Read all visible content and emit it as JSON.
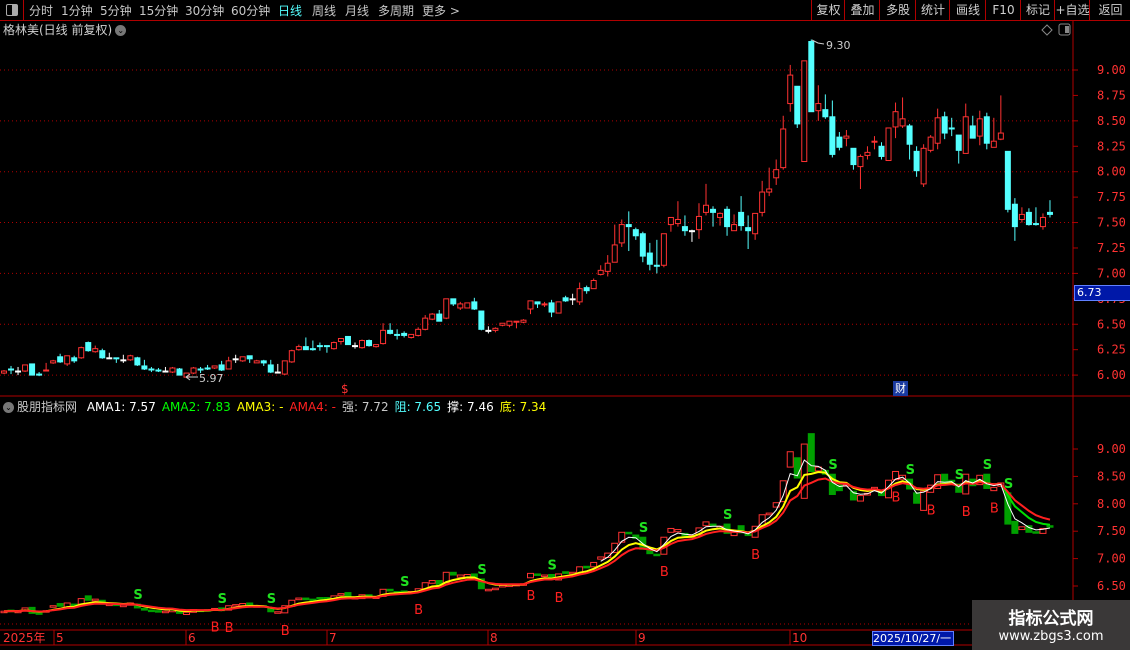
{
  "toolbar": {
    "periods": [
      "分时",
      "1分钟",
      "5分钟",
      "15分钟",
      "30分钟",
      "60分钟",
      "日线",
      "周线",
      "月线",
      "多周期",
      "更多 >"
    ],
    "active_period": "日线",
    "buttons": [
      "复权",
      "叠加",
      "多股",
      "统计",
      "画线",
      "F10",
      "标记",
      "+自选",
      "返回"
    ]
  },
  "chart_title": "格林美(日线 前复权)",
  "main_axis": {
    "ticks": [
      "9.00",
      "8.75",
      "8.50",
      "8.25",
      "8.00",
      "7.75",
      "7.50",
      "7.25",
      "7.00",
      "6.75",
      "6.50",
      "6.25",
      "6.00"
    ]
  },
  "annotations": {
    "high_label": "9.30",
    "low_label": "5.97",
    "current_price": "6.73",
    "dollar_marker": "$",
    "cai_marker": "财"
  },
  "indicator": {
    "name": "股朋指标网",
    "items": [
      {
        "label": "AMA1: 7.57",
        "color": "#ffffff"
      },
      {
        "label": "AMA2: 7.83",
        "color": "#00ff00"
      },
      {
        "label": "AMA3: -",
        "color": "#ffff00"
      },
      {
        "label": "AMA4: -",
        "color": "#ff2020"
      },
      {
        "label": "强: 7.72",
        "color": "#c8c8c8"
      },
      {
        "label": "阻: 7.65",
        "color": "#54ffff"
      },
      {
        "label": "撑: 7.46",
        "color": "#ffffff"
      },
      {
        "label": "底: 7.34",
        "color": "#ffff00"
      }
    ],
    "axis_ticks": [
      "9.00",
      "8.50",
      "8.00",
      "7.50",
      "7.00",
      "6.50"
    ],
    "signals": {
      "S": [
        19,
        31,
        38,
        57,
        68,
        78,
        91,
        103,
        118,
        129,
        136,
        140,
        143
      ],
      "B": [
        30,
        32,
        40,
        59,
        75,
        79,
        94,
        107,
        127,
        132,
        137,
        141
      ]
    }
  },
  "date_axis": {
    "year": "2025年",
    "months": [
      "5",
      "6",
      "7",
      "8",
      "9",
      "10"
    ],
    "selected_date": "2025/10/27/一"
  },
  "watermark": {
    "line1": "指标公式网",
    "line2": "www.zbgs3.com"
  },
  "colors": {
    "up": "#ff3232",
    "down": "#54ffff",
    "flat": "#ffffff",
    "grid": "#b00000",
    "lower_down": "#00a000"
  },
  "candles_ohlc": [
    [
      6.02,
      6.05,
      6.01,
      6.04
    ],
    [
      6.06,
      6.09,
      6.01,
      6.05
    ],
    [
      6.04,
      6.08,
      6.0,
      6.04
    ],
    [
      6.04,
      6.1,
      6.03,
      6.1
    ],
    [
      6.11,
      6.11,
      6.0,
      6.0
    ],
    [
      6.01,
      6.03,
      5.99,
      6.0
    ],
    [
      6.04,
      6.12,
      6.04,
      6.05
    ],
    [
      6.12,
      6.15,
      6.11,
      6.14
    ],
    [
      6.18,
      6.21,
      6.12,
      6.13
    ],
    [
      6.11,
      6.19,
      6.09,
      6.19
    ],
    [
      6.17,
      6.19,
      6.12,
      6.14
    ],
    [
      6.17,
      6.28,
      6.16,
      6.27
    ],
    [
      6.32,
      6.33,
      6.23,
      6.24
    ],
    [
      6.23,
      6.29,
      6.22,
      6.26
    ],
    [
      6.24,
      6.26,
      6.16,
      6.17
    ],
    [
      6.17,
      6.22,
      6.16,
      6.17
    ],
    [
      6.17,
      6.17,
      6.12,
      6.16
    ],
    [
      6.15,
      6.2,
      6.12,
      6.15
    ],
    [
      6.15,
      6.2,
      6.14,
      6.19
    ],
    [
      6.17,
      6.18,
      6.09,
      6.1
    ],
    [
      6.09,
      6.15,
      6.05,
      6.06
    ],
    [
      6.06,
      6.08,
      6.03,
      6.05
    ],
    [
      6.05,
      6.07,
      6.03,
      6.04
    ],
    [
      6.04,
      6.08,
      6.04,
      6.04
    ],
    [
      6.03,
      6.08,
      6.02,
      6.07
    ],
    [
      6.06,
      6.07,
      6.0,
      6.0
    ],
    [
      5.98,
      6.02,
      5.97,
      6.02
    ],
    [
      6.02,
      6.08,
      6.01,
      6.07
    ],
    [
      6.06,
      6.08,
      6.02,
      6.05
    ],
    [
      6.07,
      6.1,
      6.05,
      6.06
    ],
    [
      6.07,
      6.09,
      6.06,
      6.09
    ],
    [
      6.1,
      6.14,
      6.04,
      6.05
    ],
    [
      6.06,
      6.18,
      6.06,
      6.14
    ],
    [
      6.16,
      6.2,
      6.12,
      6.16
    ],
    [
      6.14,
      6.18,
      6.13,
      6.18
    ],
    [
      6.19,
      6.19,
      6.12,
      6.16
    ],
    [
      6.12,
      6.15,
      6.12,
      6.14
    ],
    [
      6.14,
      6.15,
      6.09,
      6.12
    ],
    [
      6.1,
      6.15,
      6.02,
      6.03
    ],
    [
      6.03,
      6.11,
      6.02,
      6.03
    ],
    [
      6.01,
      6.14,
      6.0,
      6.14
    ],
    [
      6.13,
      6.25,
      6.12,
      6.24
    ],
    [
      6.25,
      6.3,
      6.24,
      6.28
    ],
    [
      6.28,
      6.37,
      6.25,
      6.25
    ],
    [
      6.26,
      6.34,
      6.24,
      6.25
    ],
    [
      6.29,
      6.32,
      6.24,
      6.28
    ],
    [
      6.29,
      6.29,
      6.22,
      6.28
    ],
    [
      6.26,
      6.33,
      6.25,
      6.32
    ],
    [
      6.33,
      6.36,
      6.3,
      6.36
    ],
    [
      6.38,
      6.38,
      6.3,
      6.3
    ],
    [
      6.29,
      6.32,
      6.26,
      6.29
    ],
    [
      6.27,
      6.35,
      6.26,
      6.34
    ],
    [
      6.34,
      6.35,
      6.28,
      6.29
    ],
    [
      6.28,
      6.3,
      6.27,
      6.3
    ],
    [
      6.31,
      6.51,
      6.3,
      6.44
    ],
    [
      6.44,
      6.51,
      6.4,
      6.41
    ],
    [
      6.4,
      6.45,
      6.35,
      6.39
    ],
    [
      6.41,
      6.43,
      6.37,
      6.39
    ],
    [
      6.37,
      6.4,
      6.36,
      6.4
    ],
    [
      6.39,
      6.47,
      6.38,
      6.45
    ],
    [
      6.45,
      6.59,
      6.44,
      6.56
    ],
    [
      6.55,
      6.61,
      6.54,
      6.6
    ],
    [
      6.6,
      6.64,
      6.53,
      6.53
    ],
    [
      6.56,
      6.75,
      6.55,
      6.75
    ],
    [
      6.75,
      6.75,
      6.68,
      6.7
    ],
    [
      6.66,
      6.72,
      6.64,
      6.7
    ],
    [
      6.66,
      6.71,
      6.66,
      6.71
    ],
    [
      6.72,
      6.76,
      6.64,
      6.65
    ],
    [
      6.63,
      6.63,
      6.44,
      6.45
    ],
    [
      6.44,
      6.48,
      6.41,
      6.44
    ],
    [
      6.44,
      6.47,
      6.42,
      6.46
    ],
    [
      6.49,
      6.51,
      6.48,
      6.51
    ],
    [
      6.49,
      6.53,
      6.47,
      6.53
    ],
    [
      6.52,
      6.53,
      6.46,
      6.53
    ],
    [
      6.52,
      6.55,
      6.51,
      6.54
    ],
    [
      6.65,
      6.73,
      6.6,
      6.73
    ],
    [
      6.72,
      6.72,
      6.66,
      6.7
    ],
    [
      6.69,
      6.72,
      6.67,
      6.7
    ],
    [
      6.71,
      6.74,
      6.57,
      6.62
    ],
    [
      6.61,
      6.72,
      6.61,
      6.72
    ],
    [
      6.76,
      6.78,
      6.72,
      6.73
    ],
    [
      6.75,
      6.8,
      6.69,
      6.75
    ],
    [
      6.72,
      6.91,
      6.69,
      6.85
    ],
    [
      6.86,
      6.88,
      6.8,
      6.83
    ],
    [
      6.85,
      6.95,
      6.85,
      6.93
    ],
    [
      6.99,
      7.08,
      6.98,
      7.03
    ],
    [
      7.02,
      7.18,
      6.97,
      7.1
    ],
    [
      7.11,
      7.48,
      7.11,
      7.28
    ],
    [
      7.3,
      7.53,
      7.26,
      7.48
    ],
    [
      7.48,
      7.61,
      7.22,
      7.46
    ],
    [
      7.43,
      7.45,
      7.33,
      7.37
    ],
    [
      7.39,
      7.41,
      7.11,
      7.17
    ],
    [
      7.2,
      7.3,
      7.03,
      7.09
    ],
    [
      7.08,
      7.33,
      7.0,
      7.07
    ],
    [
      7.08,
      7.39,
      7.06,
      7.39
    ],
    [
      7.48,
      7.55,
      7.41,
      7.55
    ],
    [
      7.49,
      7.71,
      7.46,
      7.53
    ],
    [
      7.46,
      7.57,
      7.37,
      7.42
    ],
    [
      7.42,
      7.43,
      7.31,
      7.42
    ],
    [
      7.43,
      7.69,
      7.34,
      7.56
    ],
    [
      7.6,
      7.88,
      7.57,
      7.67
    ],
    [
      7.63,
      7.66,
      7.46,
      7.6
    ],
    [
      7.55,
      7.6,
      7.47,
      7.59
    ],
    [
      7.63,
      7.66,
      7.37,
      7.46
    ],
    [
      7.42,
      7.58,
      7.42,
      7.48
    ],
    [
      7.6,
      7.76,
      7.42,
      7.47
    ],
    [
      7.45,
      7.57,
      7.24,
      7.42
    ],
    [
      7.39,
      7.59,
      7.33,
      7.59
    ],
    [
      7.6,
      7.91,
      7.56,
      7.8
    ],
    [
      7.8,
      8.04,
      7.76,
      7.83
    ],
    [
      7.94,
      8.12,
      7.87,
      8.02
    ],
    [
      8.04,
      8.55,
      8.02,
      8.42
    ],
    [
      8.67,
      9.05,
      8.59,
      8.95
    ],
    [
      8.84,
      8.84,
      8.43,
      8.47
    ],
    [
      8.1,
      9.09,
      8.1,
      9.09
    ],
    [
      9.28,
      9.3,
      8.59,
      8.59
    ],
    [
      8.6,
      8.85,
      8.5,
      8.67
    ],
    [
      8.61,
      8.76,
      8.52,
      8.54
    ],
    [
      8.54,
      8.7,
      8.14,
      8.17
    ],
    [
      8.34,
      8.39,
      8.21,
      8.24
    ],
    [
      8.33,
      8.41,
      8.25,
      8.35
    ],
    [
      8.23,
      8.23,
      8.02,
      8.07
    ],
    [
      8.05,
      8.17,
      7.83,
      8.15
    ],
    [
      8.16,
      8.25,
      8.12,
      8.19
    ],
    [
      8.29,
      8.35,
      8.22,
      8.3
    ],
    [
      8.25,
      8.29,
      8.12,
      8.15
    ],
    [
      8.11,
      8.43,
      8.11,
      8.43
    ],
    [
      8.44,
      8.68,
      8.33,
      8.59
    ],
    [
      8.45,
      8.73,
      8.43,
      8.52
    ],
    [
      8.45,
      8.47,
      8.12,
      8.27
    ],
    [
      8.2,
      8.25,
      7.95,
      8.01
    ],
    [
      7.88,
      8.27,
      7.85,
      8.23
    ],
    [
      8.21,
      8.36,
      8.19,
      8.34
    ],
    [
      8.28,
      8.62,
      8.22,
      8.53
    ],
    [
      8.54,
      8.59,
      8.32,
      8.38
    ],
    [
      8.43,
      8.53,
      8.35,
      8.42
    ],
    [
      8.36,
      8.36,
      8.08,
      8.21
    ],
    [
      8.18,
      8.67,
      8.18,
      8.54
    ],
    [
      8.45,
      8.55,
      8.33,
      8.33
    ],
    [
      8.35,
      8.6,
      8.26,
      8.52
    ],
    [
      8.54,
      8.58,
      8.22,
      8.28
    ],
    [
      8.24,
      8.53,
      8.24,
      8.3
    ],
    [
      8.32,
      8.75,
      8.31,
      8.38
    ],
    [
      8.2,
      8.2,
      7.6,
      7.63
    ],
    [
      7.68,
      7.74,
      7.32,
      7.46
    ],
    [
      7.53,
      7.65,
      7.5,
      7.58
    ],
    [
      7.6,
      7.64,
      7.47,
      7.48
    ],
    [
      7.49,
      7.65,
      7.47,
      7.48
    ],
    [
      7.46,
      7.59,
      7.43,
      7.55
    ],
    [
      7.6,
      7.72,
      7.55,
      7.58
    ]
  ]
}
